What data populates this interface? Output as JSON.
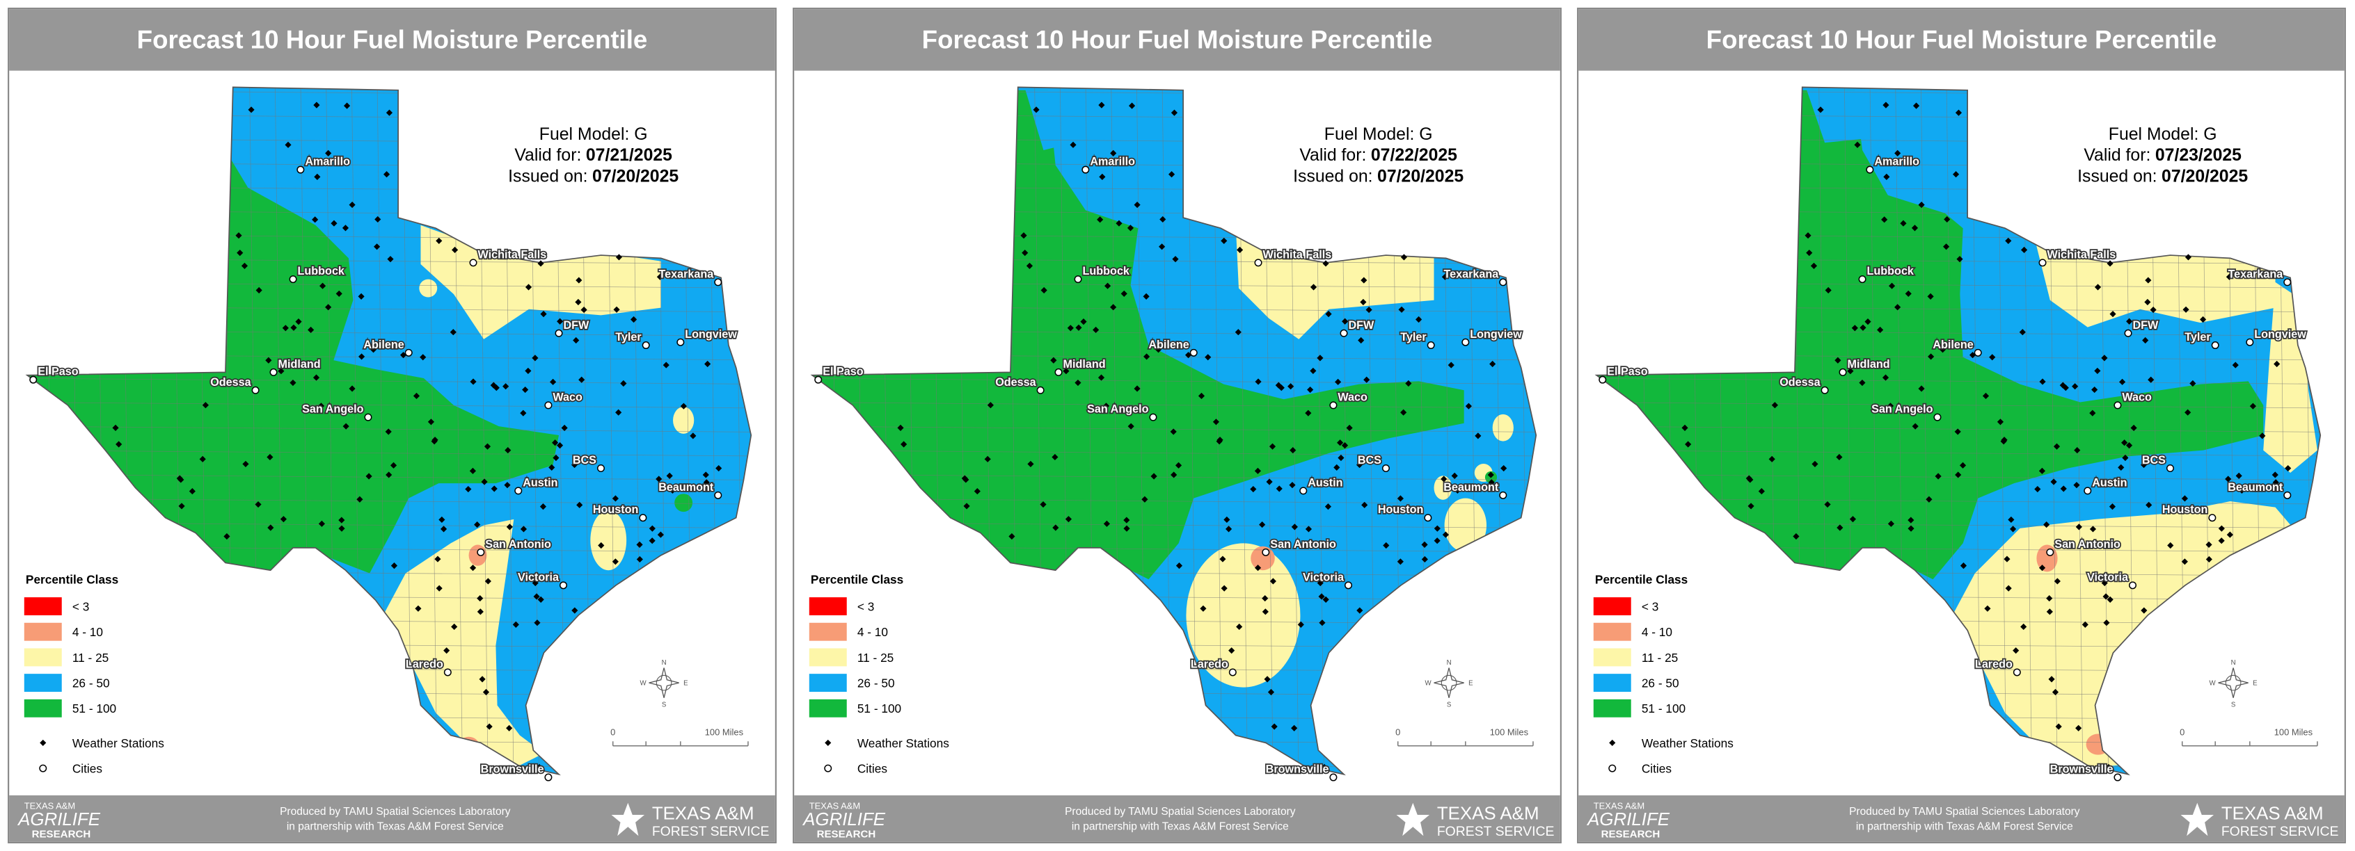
{
  "panels": [
    {
      "title": "Forecast 10 Hour Fuel Moisture Percentile",
      "fuel_model": "Fuel Model: G",
      "valid_label": "Valid for:",
      "valid_date": "07/21/2025",
      "issued_label": "Issued on:",
      "issued_date": "07/20/2025"
    },
    {
      "title": "Forecast 10 Hour Fuel Moisture Percentile",
      "fuel_model": "Fuel Model: G",
      "valid_label": "Valid for:",
      "valid_date": "07/22/2025",
      "issued_label": "Issued on:",
      "issued_date": "07/20/2025"
    },
    {
      "title": "Forecast 10 Hour Fuel Moisture Percentile",
      "fuel_model": "Fuel Model: G",
      "valid_label": "Valid for:",
      "valid_date": "07/23/2025",
      "issued_label": "Issued on:",
      "issued_date": "07/20/2025"
    }
  ],
  "legend": {
    "title": "Percentile Class",
    "classes": [
      {
        "label": "< 3",
        "color": "#ff0000"
      },
      {
        "label": "4 - 10",
        "color": "#f79c76"
      },
      {
        "label": "11 - 25",
        "color": "#fdf6a8"
      },
      {
        "label": "26 - 50",
        "color": "#11a9f2"
      },
      {
        "label": "51 - 100",
        "color": "#12b83c"
      }
    ],
    "stations": "Weather Stations",
    "cities": "Cities"
  },
  "cities": [
    "Amarillo",
    "Lubbock",
    "Wichita Falls",
    "Texarkana",
    "DFW",
    "Tyler",
    "Longview",
    "El Paso",
    "Midland",
    "Odessa",
    "Abilene",
    "San Angelo",
    "Waco",
    "BCS",
    "Austin",
    "Beaumont",
    "Houston",
    "San Antonio",
    "Victoria",
    "Laredo",
    "Brownsville"
  ],
  "scale": {
    "start": "0",
    "end": "100 Miles"
  },
  "compass": {
    "n": "N",
    "s": "S",
    "e": "E",
    "w": "W"
  },
  "footer": {
    "line1": "Produced by TAMU Spatial Sciences Laboratory",
    "line2": "in partnership with Texas A&M Forest Service",
    "agrilife_top": "TEXAS A&M",
    "agrilife_main": "AGRILIFE",
    "agrilife_bottom": "RESEARCH",
    "forest_top": "TEXAS A&M",
    "forest_bottom": "FOREST SERVICE"
  }
}
